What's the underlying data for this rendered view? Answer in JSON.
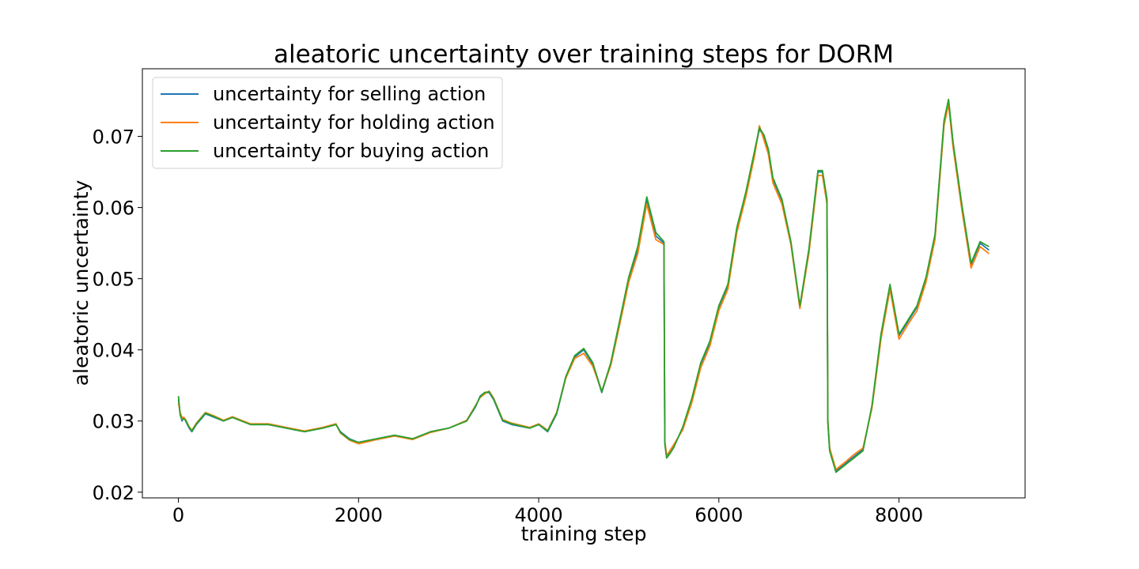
{
  "chart_data": {
    "type": "line",
    "title": "aleatoric uncertainty over training steps for DORM",
    "xlabel": "training step",
    "ylabel": "aleatoric uncertainty",
    "xlim": [
      -400,
      9400
    ],
    "ylim": [
      0.0192,
      0.0795
    ],
    "xticks": [
      0,
      2000,
      4000,
      6000,
      8000
    ],
    "xtick_labels": [
      "0",
      "2000",
      "4000",
      "6000",
      "8000"
    ],
    "yticks": [
      0.02,
      0.03,
      0.04,
      0.05,
      0.06,
      0.07
    ],
    "ytick_labels": [
      "0.02",
      "0.03",
      "0.04",
      "0.05",
      "0.06",
      "0.07"
    ],
    "grid": false,
    "legend_position": "upper-left",
    "x": [
      0,
      20,
      40,
      60,
      80,
      100,
      120,
      150,
      200,
      300,
      400,
      500,
      600,
      800,
      1000,
      1200,
      1400,
      1600,
      1750,
      1800,
      1900,
      2000,
      2200,
      2400,
      2600,
      2800,
      3000,
      3200,
      3300,
      3350,
      3400,
      3450,
      3500,
      3600,
      3700,
      3900,
      4000,
      4100,
      4200,
      4300,
      4400,
      4500,
      4600,
      4700,
      4800,
      4900,
      5000,
      5100,
      5200,
      5300,
      5390,
      5400,
      5420,
      5450,
      5500,
      5600,
      5700,
      5800,
      5900,
      6000,
      6100,
      6200,
      6300,
      6400,
      6450,
      6500,
      6550,
      6600,
      6700,
      6800,
      6900,
      7000,
      7100,
      7150,
      7200,
      7210,
      7230,
      7300,
      7400,
      7500,
      7600,
      7700,
      7800,
      7900,
      8000,
      8100,
      8200,
      8300,
      8400,
      8450,
      8500,
      8550,
      8600,
      8700,
      8800,
      8900,
      9000
    ],
    "series": [
      {
        "name": "uncertainty for selling action",
        "color": "#1f77b4",
        "values": [
          0.033,
          0.031,
          0.03,
          0.0305,
          0.03,
          0.0295,
          0.029,
          0.0285,
          0.0295,
          0.031,
          0.0305,
          0.03,
          0.0305,
          0.0295,
          0.0295,
          0.029,
          0.0285,
          0.029,
          0.0295,
          0.0285,
          0.0275,
          0.027,
          0.0275,
          0.028,
          0.0275,
          0.0285,
          0.029,
          0.03,
          0.032,
          0.0335,
          0.034,
          0.034,
          0.033,
          0.03,
          0.0295,
          0.029,
          0.0295,
          0.0285,
          0.031,
          0.036,
          0.039,
          0.04,
          0.038,
          0.034,
          0.038,
          0.044,
          0.05,
          0.054,
          0.061,
          0.056,
          0.055,
          0.027,
          0.025,
          0.0255,
          0.0265,
          0.029,
          0.033,
          0.038,
          0.041,
          0.046,
          0.049,
          0.057,
          0.062,
          0.068,
          0.071,
          0.07,
          0.068,
          0.064,
          0.061,
          0.055,
          0.046,
          0.054,
          0.065,
          0.065,
          0.061,
          0.03,
          0.026,
          0.023,
          0.024,
          0.025,
          0.026,
          0.032,
          0.042,
          0.049,
          0.042,
          0.044,
          0.046,
          0.05,
          0.056,
          0.064,
          0.072,
          0.075,
          0.069,
          0.06,
          0.052,
          0.055,
          0.054
        ]
      },
      {
        "name": "uncertainty for holding action",
        "color": "#ff7f0e",
        "values": [
          0.0325,
          0.0312,
          0.0305,
          0.0305,
          0.0302,
          0.0297,
          0.0292,
          0.0287,
          0.0297,
          0.0312,
          0.0307,
          0.0301,
          0.0306,
          0.0296,
          0.0296,
          0.0291,
          0.0286,
          0.0291,
          0.0296,
          0.0283,
          0.0273,
          0.0268,
          0.0274,
          0.0279,
          0.0274,
          0.0284,
          0.029,
          0.0301,
          0.0322,
          0.0333,
          0.0338,
          0.0342,
          0.0332,
          0.0302,
          0.0297,
          0.0291,
          0.0296,
          0.0287,
          0.0312,
          0.036,
          0.0388,
          0.0395,
          0.0377,
          0.0342,
          0.0378,
          0.0436,
          0.0495,
          0.0535,
          0.0605,
          0.0555,
          0.0548,
          0.0272,
          0.0252,
          0.0257,
          0.0267,
          0.0288,
          0.0326,
          0.0375,
          0.0405,
          0.0455,
          0.0485,
          0.0565,
          0.0615,
          0.0675,
          0.0715,
          0.0695,
          0.0675,
          0.0635,
          0.0605,
          0.0548,
          0.0458,
          0.0536,
          0.0645,
          0.0645,
          0.0605,
          0.0302,
          0.0262,
          0.0232,
          0.0242,
          0.0253,
          0.0262,
          0.0318,
          0.0415,
          0.0485,
          0.0415,
          0.0436,
          0.0455,
          0.0495,
          0.0555,
          0.0635,
          0.0715,
          0.0745,
          0.0685,
          0.0595,
          0.0515,
          0.0545,
          0.0535
        ]
      },
      {
        "name": "uncertainty for buying action",
        "color": "#2ca02c",
        "values": [
          0.0335,
          0.0308,
          0.0302,
          0.0303,
          0.0301,
          0.0296,
          0.0291,
          0.0286,
          0.0296,
          0.0311,
          0.0306,
          0.03,
          0.0305,
          0.0295,
          0.0295,
          0.029,
          0.0285,
          0.029,
          0.0295,
          0.0284,
          0.0274,
          0.027,
          0.0275,
          0.028,
          0.0275,
          0.0285,
          0.029,
          0.03,
          0.0321,
          0.0334,
          0.034,
          0.0341,
          0.0331,
          0.0301,
          0.0296,
          0.029,
          0.0295,
          0.0286,
          0.0311,
          0.0362,
          0.0392,
          0.0402,
          0.0382,
          0.0341,
          0.0382,
          0.0442,
          0.0502,
          0.0545,
          0.0615,
          0.0565,
          0.0552,
          0.0268,
          0.0248,
          0.0253,
          0.0263,
          0.0292,
          0.0332,
          0.0382,
          0.0412,
          0.0462,
          0.0492,
          0.0572,
          0.0622,
          0.0682,
          0.0712,
          0.0702,
          0.0682,
          0.0642,
          0.0612,
          0.0552,
          0.0462,
          0.0542,
          0.0652,
          0.0652,
          0.0612,
          0.0298,
          0.0258,
          0.0228,
          0.0238,
          0.0248,
          0.0258,
          0.0322,
          0.0422,
          0.0492,
          0.0422,
          0.0442,
          0.0462,
          0.0502,
          0.0562,
          0.0642,
          0.0722,
          0.0752,
          0.0692,
          0.0602,
          0.0522,
          0.0552,
          0.0545
        ]
      }
    ]
  }
}
